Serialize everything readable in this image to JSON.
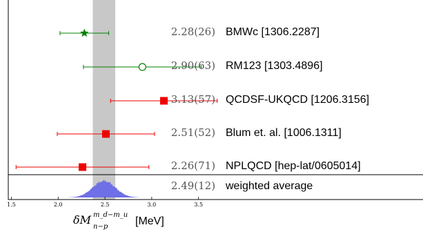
{
  "chart_data": {
    "type": "scatter",
    "xlim": [
      1.5,
      5.9
    ],
    "x_ticks": [
      "1.5",
      "2.0",
      "2.5",
      "3.0",
      "3.5"
    ],
    "xlabel_main": "δM",
    "xlabel_superscript": "m_d−m_u",
    "xlabel_subscript": "n−p",
    "xlabel_unit": "[MeV]",
    "band": {
      "center": 2.49,
      "error": 0.12,
      "color": "#c8c8c8"
    },
    "entries": [
      {
        "label": "BMWc [1306.2287]",
        "value_text": "2.28(26)",
        "value": 2.28,
        "error": 0.26,
        "marker": "star",
        "color": "#008000"
      },
      {
        "label": "RM123 [1303.4896]",
        "value_text": "2.90(63)",
        "value": 2.9,
        "error": 0.63,
        "marker": "open-circle",
        "color": "#008000"
      },
      {
        "label": "QCDSF-UKQCD [1206.3156]",
        "value_text": "3.13(57)",
        "value": 3.13,
        "error": 0.57,
        "marker": "square",
        "color": "#ee0000"
      },
      {
        "label": "Blum et. al. [1006.1311]",
        "value_text": "2.51(52)",
        "value": 2.51,
        "error": 0.52,
        "marker": "square",
        "color": "#ee0000"
      },
      {
        "label": "NPLQCD [hep-lat/0605014]",
        "value_text": "2.26(71)",
        "value": 2.26,
        "error": 0.71,
        "marker": "square",
        "color": "#ee0000"
      }
    ],
    "average": {
      "label": "weighted average",
      "value_text": "2.49(12)",
      "value": 2.49,
      "error": 0.12,
      "color": "#6f6fe6"
    }
  }
}
